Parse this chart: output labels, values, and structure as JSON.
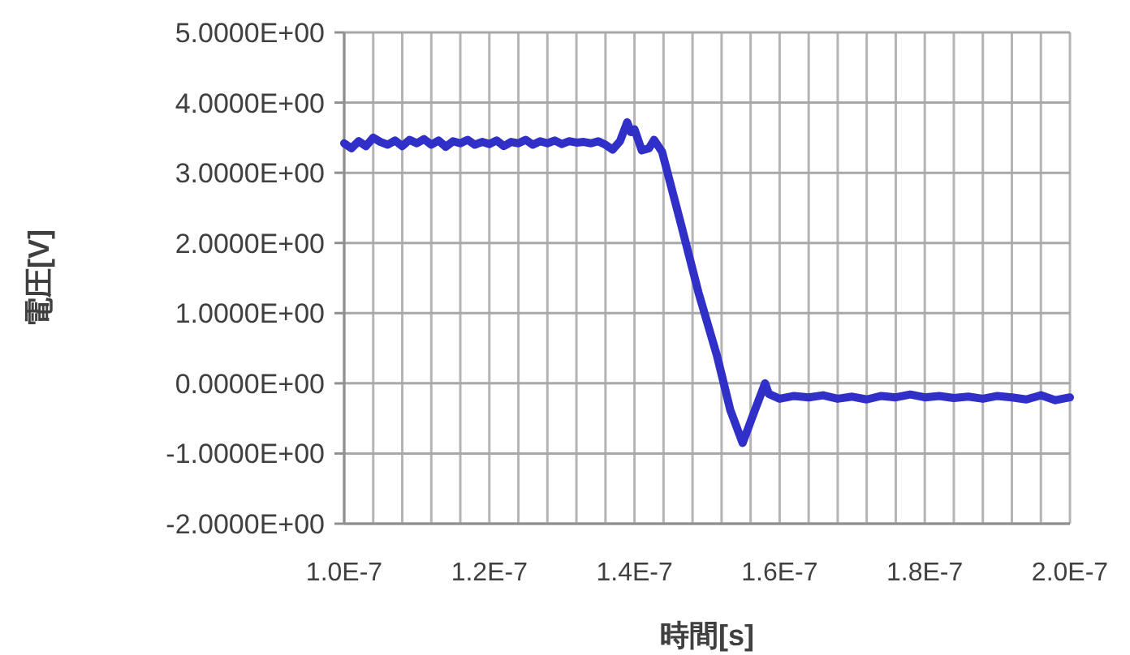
{
  "chart_data": {
    "type": "line",
    "xlabel": "時間[s]",
    "ylabel": "電圧[V]",
    "grid": true,
    "marker": "none",
    "line_style": "solid",
    "xlim": [
      1e-07,
      2e-07
    ],
    "ylim": [
      -2,
      5
    ],
    "xticks": [
      {
        "value": 1e-07,
        "label": "1.0E-7"
      },
      {
        "value": 1.04e-07,
        "label": null
      },
      {
        "value": 1.08e-07,
        "label": null
      },
      {
        "value": 1.12e-07,
        "label": null
      },
      {
        "value": 1.16e-07,
        "label": null
      },
      {
        "value": 1.2e-07,
        "label": "1.2E-7"
      },
      {
        "value": 1.24e-07,
        "label": null
      },
      {
        "value": 1.28e-07,
        "label": null
      },
      {
        "value": 1.32e-07,
        "label": null
      },
      {
        "value": 1.36e-07,
        "label": null
      },
      {
        "value": 1.4e-07,
        "label": "1.4E-7"
      },
      {
        "value": 1.44e-07,
        "label": null
      },
      {
        "value": 1.48e-07,
        "label": null
      },
      {
        "value": 1.52e-07,
        "label": null
      },
      {
        "value": 1.56e-07,
        "label": null
      },
      {
        "value": 1.6e-07,
        "label": "1.6E-7"
      },
      {
        "value": 1.64e-07,
        "label": null
      },
      {
        "value": 1.68e-07,
        "label": null
      },
      {
        "value": 1.72e-07,
        "label": null
      },
      {
        "value": 1.76e-07,
        "label": null
      },
      {
        "value": 1.8e-07,
        "label": "1.8E-7"
      },
      {
        "value": 1.84e-07,
        "label": null
      },
      {
        "value": 1.88e-07,
        "label": null
      },
      {
        "value": 1.92e-07,
        "label": null
      },
      {
        "value": 1.96e-07,
        "label": null
      },
      {
        "value": 2e-07,
        "label": "2.0E-7"
      }
    ],
    "yticks": [
      {
        "value": -2,
        "label": "-2.0000E+00"
      },
      {
        "value": -1,
        "label": "-1.0000E+00"
      },
      {
        "value": 0,
        "label": "0.0000E+00"
      },
      {
        "value": 1,
        "label": "1.0000E+00"
      },
      {
        "value": 2,
        "label": "2.0000E+00"
      },
      {
        "value": 3,
        "label": "3.0000E+00"
      },
      {
        "value": 4,
        "label": "4.0000E+00"
      },
      {
        "value": 5,
        "label": "5.0000E+00"
      }
    ],
    "series": [
      {
        "color": "#3030c8",
        "x": [
          1e-07,
          1.01e-07,
          1.02e-07,
          1.03e-07,
          1.04e-07,
          1.05e-07,
          1.06e-07,
          1.07e-07,
          1.08e-07,
          1.09e-07,
          1.1e-07,
          1.11e-07,
          1.12e-07,
          1.13e-07,
          1.14e-07,
          1.15e-07,
          1.16e-07,
          1.17e-07,
          1.18e-07,
          1.19e-07,
          1.2e-07,
          1.21e-07,
          1.22e-07,
          1.23e-07,
          1.24e-07,
          1.25e-07,
          1.26e-07,
          1.27e-07,
          1.28e-07,
          1.29e-07,
          1.3e-07,
          1.31e-07,
          1.32e-07,
          1.33e-07,
          1.34e-07,
          1.35e-07,
          1.36e-07,
          1.37e-07,
          1.38e-07,
          1.39e-07,
          1.395e-07,
          1.4e-07,
          1.41e-07,
          1.42e-07,
          1.427e-07,
          1.438e-07,
          1.465e-07,
          1.488e-07,
          1.514e-07,
          1.532e-07,
          1.549e-07,
          1.566e-07,
          1.58e-07,
          1.585e-07,
          1.6e-07,
          1.62e-07,
          1.64e-07,
          1.66e-07,
          1.68e-07,
          1.7e-07,
          1.72e-07,
          1.74e-07,
          1.76e-07,
          1.78e-07,
          1.8e-07,
          1.82e-07,
          1.84e-07,
          1.86e-07,
          1.88e-07,
          1.9e-07,
          1.92e-07,
          1.94e-07,
          1.96e-07,
          1.98e-07,
          2e-07
        ],
        "values": [
          3.42,
          3.35,
          3.45,
          3.38,
          3.5,
          3.44,
          3.4,
          3.46,
          3.38,
          3.47,
          3.42,
          3.48,
          3.4,
          3.46,
          3.37,
          3.45,
          3.42,
          3.47,
          3.4,
          3.44,
          3.41,
          3.46,
          3.38,
          3.44,
          3.42,
          3.47,
          3.4,
          3.45,
          3.42,
          3.46,
          3.41,
          3.45,
          3.43,
          3.44,
          3.42,
          3.45,
          3.4,
          3.33,
          3.45,
          3.72,
          3.58,
          3.62,
          3.32,
          3.35,
          3.47,
          3.3,
          2.23,
          1.3,
          0.38,
          -0.38,
          -0.85,
          -0.38,
          0.0,
          -0.15,
          -0.22,
          -0.18,
          -0.2,
          -0.17,
          -0.22,
          -0.19,
          -0.23,
          -0.18,
          -0.2,
          -0.16,
          -0.2,
          -0.18,
          -0.21,
          -0.19,
          -0.22,
          -0.18,
          -0.2,
          -0.23,
          -0.17,
          -0.24,
          -0.2
        ]
      }
    ]
  }
}
